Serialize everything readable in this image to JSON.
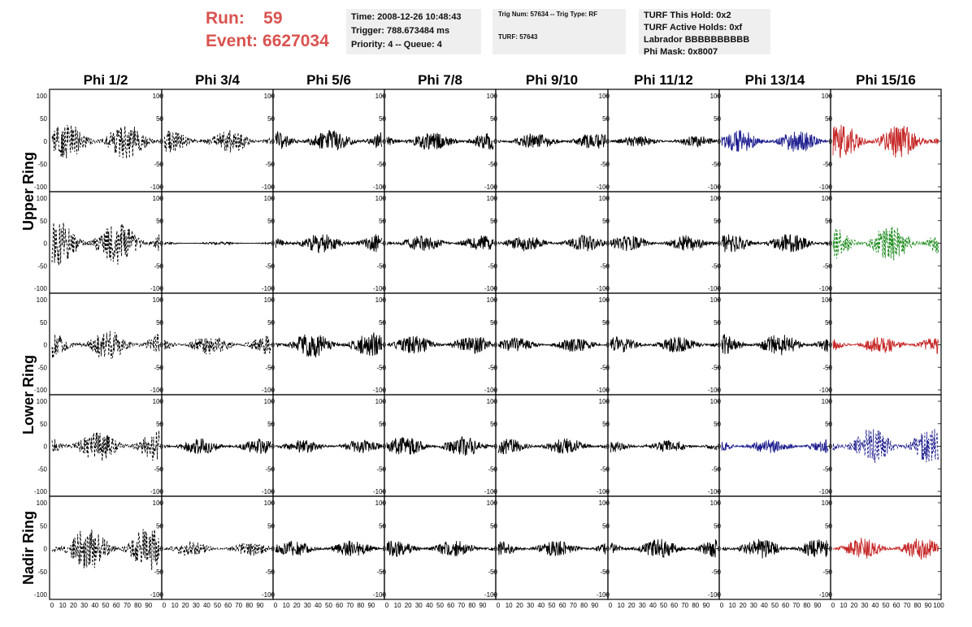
{
  "header": {
    "run_label": "Run:",
    "run_value": "59",
    "event_label": "Event:",
    "event_value": "6627034",
    "time": "Time: 2008-12-26 10:48:43",
    "trigger": "Trigger: 788.673484 ms",
    "priority": "Priority: 4 -- Queue: 4",
    "trig_num": "Trig Num: 57634 -- Trig Type: RF",
    "turf": "TURF: 57643",
    "turf_this_hold": "TURF This Hold: 0x2",
    "turf_active_holds": "TURF Active Holds: 0xf",
    "labrador": "Labrador BBBBBBBBBB",
    "phi_mask": "Phi Mask: 0x8007"
  },
  "columns": [
    "Phi 1/2",
    "Phi 3/4",
    "Phi 5/6",
    "Phi 7/8",
    "Phi 9/10",
    "Phi 11/12",
    "Phi 13/14",
    "Phi 15/16"
  ],
  "row_labels": [
    {
      "text": "Upper Ring",
      "spans": [
        0,
        1
      ]
    },
    {
      "text": "Lower Ring",
      "spans": [
        2,
        3
      ]
    },
    {
      "text": "Nadir Ring",
      "spans": [
        4,
        4
      ]
    }
  ],
  "y_ticks": [
    "100",
    "50",
    "0",
    "-50",
    "-100"
  ],
  "x_ticks": [
    "0",
    "10",
    "20",
    "30",
    "40",
    "50",
    "60",
    "70",
    "80",
    "90",
    "100"
  ],
  "colors": {
    "black": "#000000",
    "blue": "#1f1f8f",
    "red": "#c62828",
    "green": "#1a8a1a",
    "run_text": "#d9534f",
    "info_bg": "#efefef"
  },
  "chart_data": {
    "type": "line",
    "xlabel": "",
    "ylabel": "",
    "xlim": [
      0,
      100
    ],
    "ylim": [
      -100,
      100
    ],
    "panels": [
      [
        {
          "color": "black",
          "dashed": true,
          "amp": 40
        },
        {
          "color": "black",
          "dashed": true,
          "amp": 25
        },
        {
          "color": "black",
          "dashed": false,
          "amp": 25
        },
        {
          "color": "black",
          "dashed": false,
          "amp": 22
        },
        {
          "color": "black",
          "dashed": false,
          "amp": 18
        },
        {
          "color": "black",
          "dashed": false,
          "amp": 12
        },
        {
          "color": "blue",
          "dashed": false,
          "amp": 25
        },
        {
          "color": "red",
          "dashed": false,
          "amp": 38
        }
      ],
      [
        {
          "color": "black",
          "dashed": true,
          "amp": 50
        },
        {
          "color": "black",
          "dashed": false,
          "amp": 3
        },
        {
          "color": "black",
          "dashed": false,
          "amp": 22
        },
        {
          "color": "black",
          "dashed": false,
          "amp": 18
        },
        {
          "color": "black",
          "dashed": false,
          "amp": 18
        },
        {
          "color": "black",
          "dashed": false,
          "amp": 18
        },
        {
          "color": "black",
          "dashed": false,
          "amp": 22
        },
        {
          "color": "green",
          "dashed": true,
          "amp": 40
        }
      ],
      [
        {
          "color": "black",
          "dashed": true,
          "amp": 32
        },
        {
          "color": "black",
          "dashed": true,
          "amp": 22
        },
        {
          "color": "black",
          "dashed": false,
          "amp": 28
        },
        {
          "color": "black",
          "dashed": false,
          "amp": 20
        },
        {
          "color": "black",
          "dashed": false,
          "amp": 16
        },
        {
          "color": "black",
          "dashed": false,
          "amp": 18
        },
        {
          "color": "black",
          "dashed": false,
          "amp": 24
        },
        {
          "color": "red",
          "dashed": false,
          "amp": 20
        }
      ],
      [
        {
          "color": "black",
          "dashed": true,
          "amp": 35
        },
        {
          "color": "black",
          "dashed": false,
          "amp": 18
        },
        {
          "color": "black",
          "dashed": false,
          "amp": 15
        },
        {
          "color": "black",
          "dashed": false,
          "amp": 22
        },
        {
          "color": "black",
          "dashed": false,
          "amp": 18
        },
        {
          "color": "black",
          "dashed": false,
          "amp": 14
        },
        {
          "color": "blue",
          "dashed": false,
          "amp": 16
        },
        {
          "color": "blue",
          "dashed": true,
          "amp": 40
        }
      ],
      [
        {
          "color": "black",
          "dashed": true,
          "amp": 48
        },
        {
          "color": "black",
          "dashed": true,
          "amp": 16
        },
        {
          "color": "black",
          "dashed": false,
          "amp": 18
        },
        {
          "color": "black",
          "dashed": false,
          "amp": 18
        },
        {
          "color": "black",
          "dashed": false,
          "amp": 18
        },
        {
          "color": "black",
          "dashed": false,
          "amp": 22
        },
        {
          "color": "black",
          "dashed": false,
          "amp": 22
        },
        {
          "color": "red",
          "dashed": false,
          "amp": 24
        }
      ]
    ]
  }
}
